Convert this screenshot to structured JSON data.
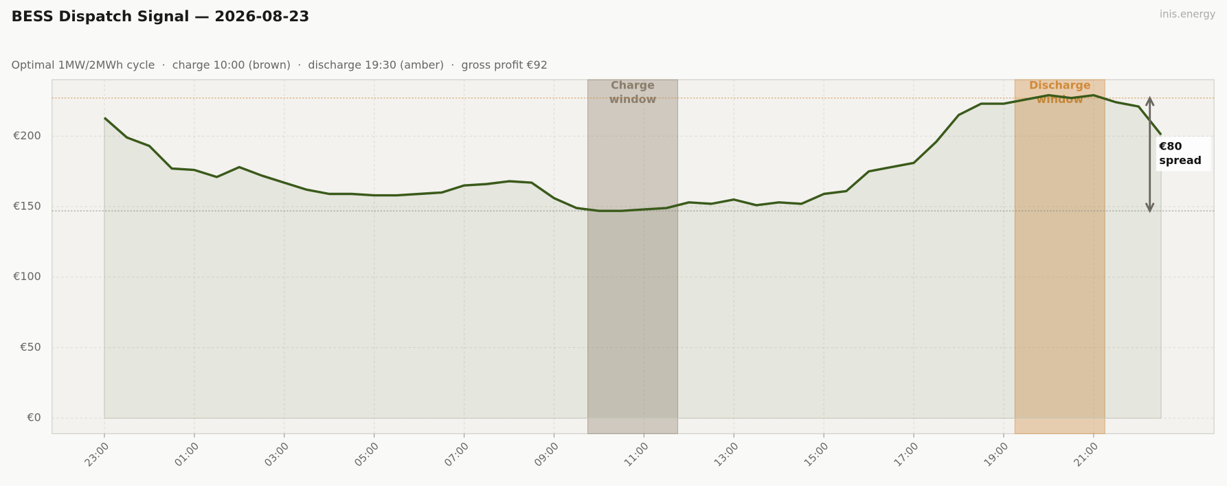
{
  "chart_data": {
    "type": "line",
    "title": "BESS Dispatch Signal — 2026-08-23",
    "subtitle": "Optimal 1MW/2MWh cycle  ·  charge 10:00 (brown)  ·  discharge 19:30 (amber)  ·  gross profit €92",
    "watermark": "inis.energy",
    "categories": [
      "23:00",
      null,
      null,
      null,
      "01:00",
      null,
      null,
      null,
      "03:00",
      null,
      null,
      null,
      "05:00",
      null,
      null,
      null,
      "07:00",
      null,
      null,
      null,
      "09:00",
      null,
      null,
      null,
      "11:00",
      null,
      null,
      null,
      "13:00",
      null,
      null,
      null,
      "15:00",
      null,
      null,
      null,
      "17:00",
      null,
      null,
      null,
      "19:00",
      null,
      null,
      null,
      "21:00",
      null,
      null,
      null
    ],
    "values": [
      213,
      199,
      193,
      177,
      176,
      171,
      178,
      172,
      167,
      162,
      159,
      159,
      158,
      158,
      159,
      160,
      165,
      166,
      168,
      167,
      156,
      149,
      147,
      147,
      148,
      149,
      153,
      152,
      155,
      151,
      153,
      152,
      159,
      161,
      175,
      178,
      181,
      196,
      215,
      223,
      223,
      226,
      229,
      227,
      229,
      224,
      221,
      201
    ],
    "color": "#3a5a1a",
    "ylim": [
      -11,
      240
    ],
    "yticks": [
      {
        "value": 0,
        "label": "€0"
      },
      {
        "value": 50,
        "label": "€50"
      },
      {
        "value": 100,
        "label": "€100"
      },
      {
        "value": 150,
        "label": "€150"
      },
      {
        "value": 200,
        "label": "€200"
      }
    ],
    "grid": true,
    "windows": [
      {
        "label": [
          "Charge",
          "window"
        ],
        "start": 21.5,
        "end": 25.5,
        "color": "#8b7d6b"
      },
      {
        "label": [
          "Discharge",
          "window"
        ],
        "start": 40.5,
        "end": 44.5,
        "color": "#d08a3a"
      }
    ],
    "reference_lines": [
      {
        "value": 227,
        "color": "#d08a3a"
      },
      {
        "value": 147,
        "color": "#888888"
      }
    ],
    "spread": {
      "label": [
        "€80",
        "spread"
      ],
      "from": 147,
      "to": 227,
      "at": 46.5
    }
  }
}
